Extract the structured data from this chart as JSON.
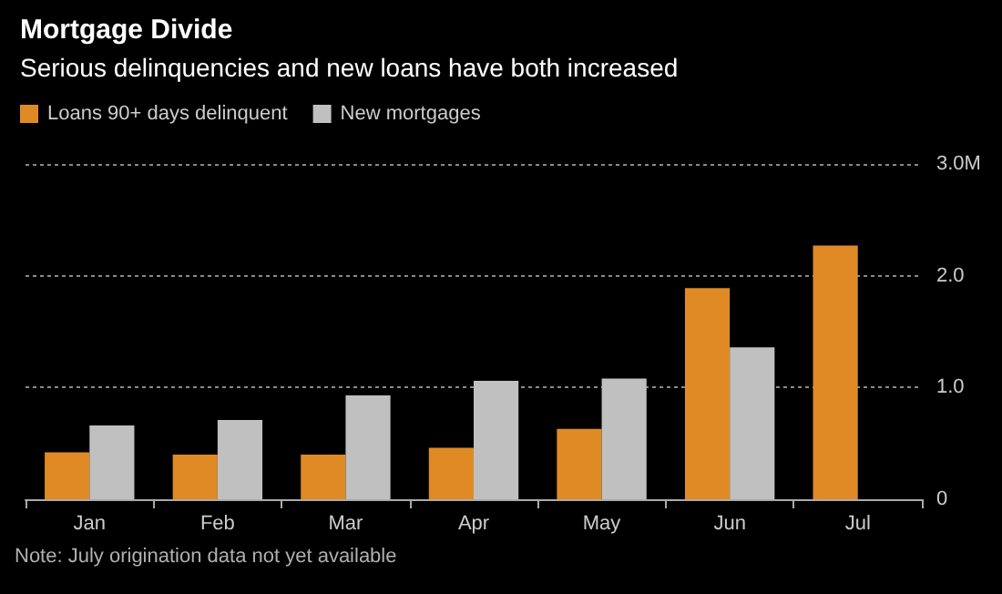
{
  "chart_data": {
    "type": "bar",
    "title": "Mortgage Divide",
    "subtitle": "Serious delinquencies and new loans have both increased",
    "categories": [
      "Jan",
      "Feb",
      "Mar",
      "Apr",
      "May",
      "Jun",
      "Jul"
    ],
    "series": [
      {
        "name": "Loans 90+ days delinquent",
        "color": "#e08a25",
        "values": [
          0.42,
          0.4,
          0.4,
          0.46,
          0.63,
          1.89,
          2.27
        ]
      },
      {
        "name": "New mortgages",
        "color": "#c0c0c0",
        "values": [
          0.66,
          0.71,
          0.93,
          1.06,
          1.08,
          1.36,
          null
        ]
      }
    ],
    "ylim": [
      0,
      3
    ],
    "yticks": [
      0,
      {
        "value": 1,
        "label": "1.0"
      },
      {
        "value": 2,
        "label": "2.0"
      },
      {
        "value": 3,
        "label": "3.0M"
      }
    ],
    "grid": "y",
    "legend": "top left",
    "annotations": [
      "Note: July origination data not yet available"
    ]
  }
}
